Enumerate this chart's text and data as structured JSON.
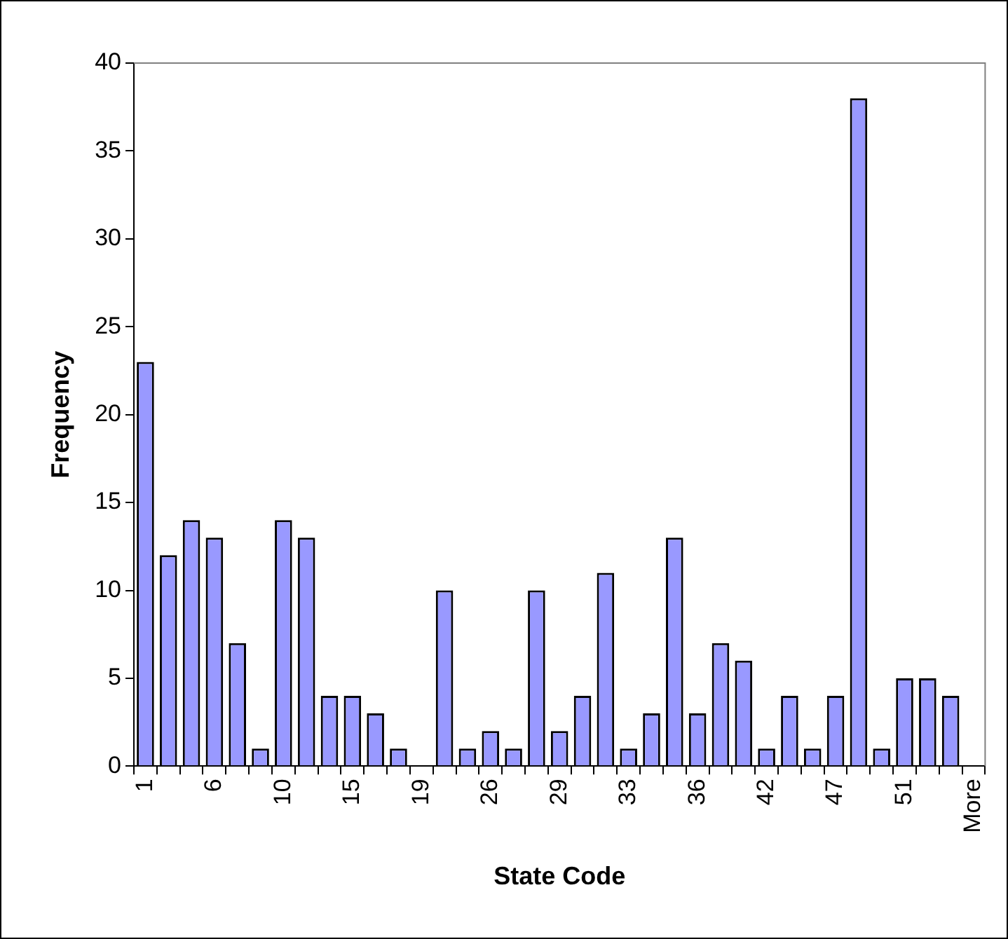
{
  "chart_data": {
    "type": "bar",
    "xlabel": "State Code",
    "ylabel": "Frequency",
    "categories": [
      "1",
      null,
      null,
      "6",
      null,
      null,
      "10",
      null,
      null,
      "15",
      null,
      null,
      "19",
      null,
      null,
      "26",
      null,
      null,
      "29",
      null,
      null,
      "33",
      null,
      null,
      "36",
      null,
      null,
      "42",
      null,
      null,
      "47",
      null,
      null,
      "51",
      null,
      null,
      "More"
    ],
    "values": [
      23,
      12,
      14,
      13,
      7,
      1,
      14,
      13,
      4,
      4,
      3,
      1,
      0,
      10,
      1,
      2,
      1,
      10,
      2,
      4,
      11,
      1,
      3,
      13,
      3,
      7,
      6,
      1,
      4,
      1,
      4,
      38,
      1,
      5,
      5,
      4,
      0
    ],
    "color": "#9999ff",
    "ylim": [
      0,
      40
    ],
    "yticks": [
      0,
      5,
      10,
      15,
      20,
      25,
      30,
      35,
      40
    ],
    "grid": false,
    "legend": false
  }
}
